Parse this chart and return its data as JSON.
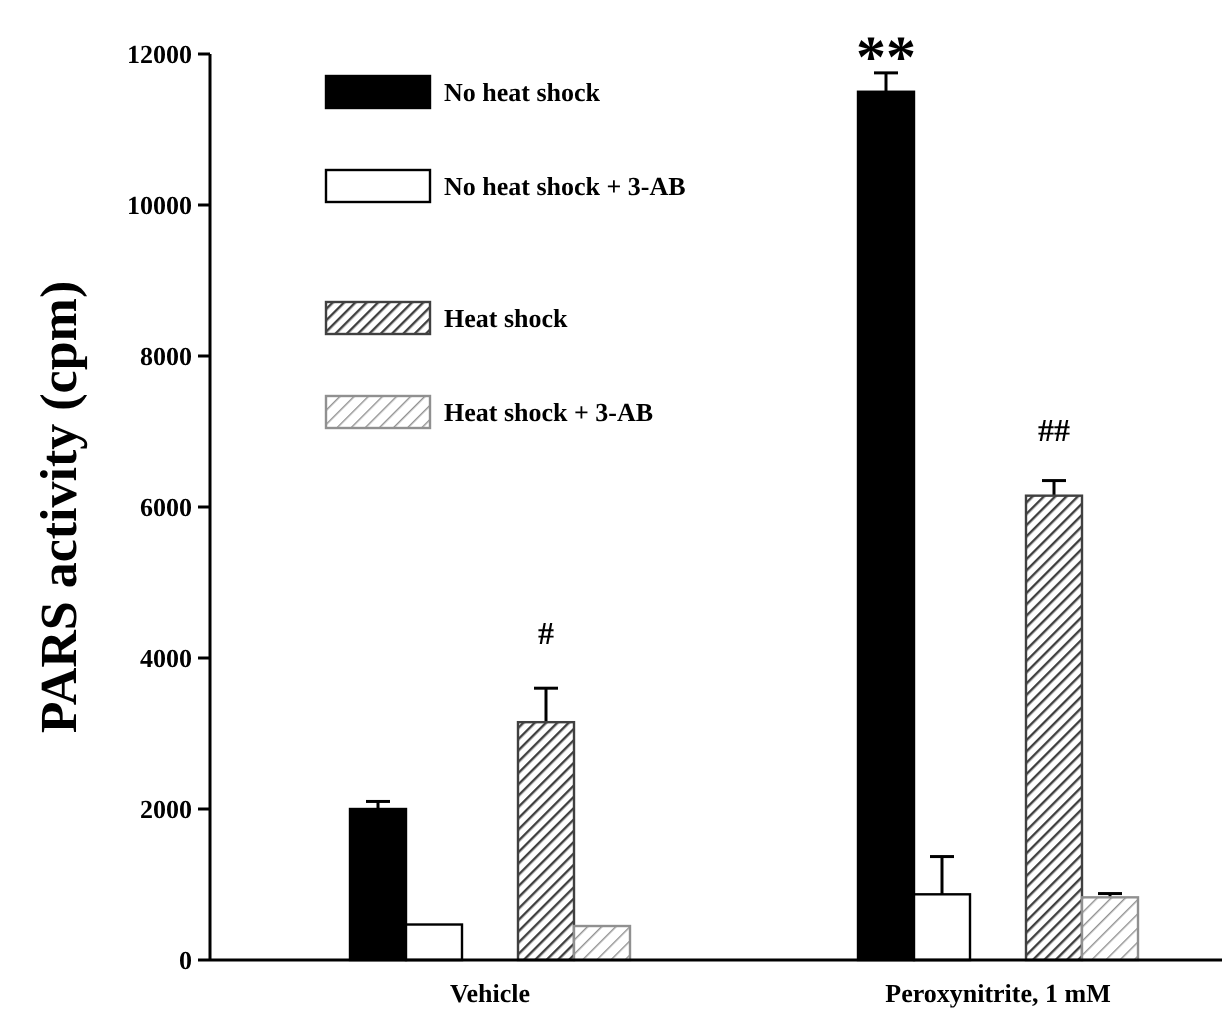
{
  "chart_data": {
    "type": "bar",
    "ylabel": "PARS activity (cpm)",
    "categories": [
      "Vehicle",
      "Peroxynitrite,  1 mM"
    ],
    "series": [
      {
        "name": "No heat shock",
        "color": "#000000",
        "values": [
          2000,
          11500
        ],
        "errors": [
          100,
          250
        ]
      },
      {
        "name": "No heat shock + 3-AB",
        "color": "#ffffff",
        "values": [
          470,
          870
        ],
        "errors": [
          null,
          500
        ]
      },
      {
        "name": "Heat shock",
        "color": "#404040",
        "values": [
          3150,
          6150
        ],
        "errors": [
          450,
          200
        ]
      },
      {
        "name": "Heat shock + 3-AB",
        "color": "#909090",
        "values": [
          450,
          830
        ],
        "errors": [
          null,
          50
        ]
      }
    ],
    "ylim": [
      0,
      12000
    ],
    "yticks": [
      0,
      2000,
      4000,
      6000,
      8000,
      10000,
      12000
    ],
    "grid": false,
    "legend": "top left",
    "annotations": [
      "#",
      "**",
      "##"
    ]
  }
}
